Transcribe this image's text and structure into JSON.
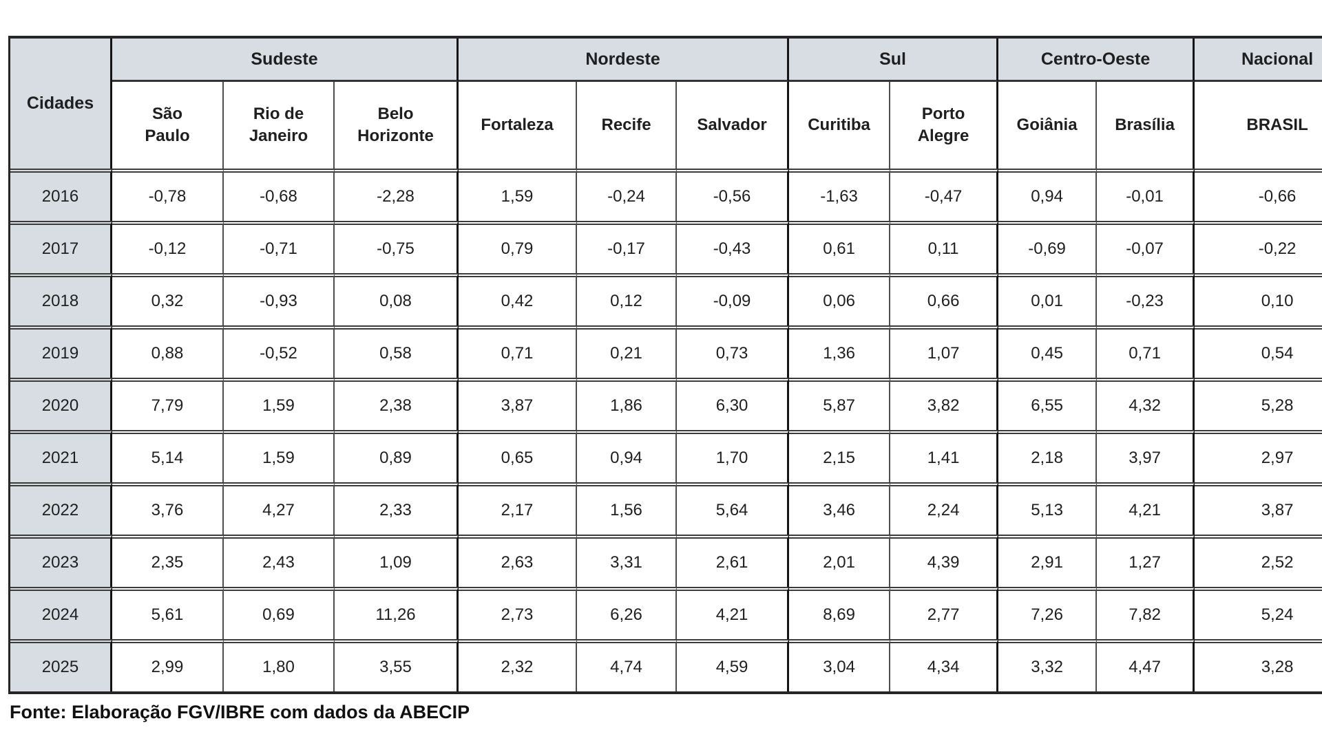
{
  "table": {
    "corner_label": "Cidades",
    "regions": [
      {
        "label": "Sudeste",
        "span": 3
      },
      {
        "label": "Nordeste",
        "span": 3
      },
      {
        "label": "Sul",
        "span": 2
      },
      {
        "label": "Centro-Oeste",
        "span": 2
      },
      {
        "label": "Nacional",
        "span": 1
      }
    ],
    "cities": [
      "São\nPaulo",
      "Rio de\nJaneiro",
      "Belo\nHorizonte",
      "Fortaleza",
      "Recife",
      "Salvador",
      "Curitiba",
      "Porto\nAlegre",
      "Goiânia",
      "Brasília",
      "BRASIL"
    ],
    "rows": [
      {
        "year": "2016",
        "values": [
          "-0,78",
          "-0,68",
          "-2,28",
          "1,59",
          "-0,24",
          "-0,56",
          "-1,63",
          "-0,47",
          "0,94",
          "-0,01",
          "-0,66"
        ]
      },
      {
        "year": "2017",
        "values": [
          "-0,12",
          "-0,71",
          "-0,75",
          "0,79",
          "-0,17",
          "-0,43",
          "0,61",
          "0,11",
          "-0,69",
          "-0,07",
          "-0,22"
        ]
      },
      {
        "year": "2018",
        "values": [
          "0,32",
          "-0,93",
          "0,08",
          "0,42",
          "0,12",
          "-0,09",
          "0,06",
          "0,66",
          "0,01",
          "-0,23",
          "0,10"
        ]
      },
      {
        "year": "2019",
        "values": [
          "0,88",
          "-0,52",
          "0,58",
          "0,71",
          "0,21",
          "0,73",
          "1,36",
          "1,07",
          "0,45",
          "0,71",
          "0,54"
        ]
      },
      {
        "year": "2020",
        "values": [
          "7,79",
          "1,59",
          "2,38",
          "3,87",
          "1,86",
          "6,30",
          "5,87",
          "3,82",
          "6,55",
          "4,32",
          "5,28"
        ]
      },
      {
        "year": "2021",
        "values": [
          "5,14",
          "1,59",
          "0,89",
          "0,65",
          "0,94",
          "1,70",
          "2,15",
          "1,41",
          "2,18",
          "3,97",
          "2,97"
        ]
      },
      {
        "year": "2022",
        "values": [
          "3,76",
          "4,27",
          "2,33",
          "2,17",
          "1,56",
          "5,64",
          "3,46",
          "2,24",
          "5,13",
          "4,21",
          "3,87"
        ]
      },
      {
        "year": "2023",
        "values": [
          "2,35",
          "2,43",
          "1,09",
          "2,63",
          "3,31",
          "2,61",
          "2,01",
          "4,39",
          "2,91",
          "1,27",
          "2,52"
        ]
      },
      {
        "year": "2024",
        "values": [
          "5,61",
          "0,69",
          "11,26",
          "2,73",
          "6,26",
          "4,21",
          "8,69",
          "2,77",
          "7,26",
          "7,82",
          "5,24"
        ]
      },
      {
        "year": "2025",
        "values": [
          "2,99",
          "1,80",
          "3,55",
          "2,32",
          "4,74",
          "4,59",
          "3,04",
          "4,34",
          "3,32",
          "4,47",
          "3,28"
        ]
      }
    ]
  },
  "footer": {
    "source": "Fonte: Elaboração FGV/IBRE com dados da ABECIP"
  },
  "colors": {
    "header_bg": "#d8dde4",
    "border_dark": "#141414",
    "border_thin": "#4d4d4d",
    "text": "#1f1f1f",
    "background": "#ffffff"
  },
  "chart_data": {
    "type": "table",
    "title": "",
    "row_header": "Cidades",
    "categories": [
      2016,
      2017,
      2018,
      2019,
      2020,
      2021,
      2022,
      2023,
      2024,
      2025
    ],
    "column_groups": [
      {
        "label": "Sudeste",
        "columns": [
          "São Paulo",
          "Rio de Janeiro",
          "Belo Horizonte"
        ]
      },
      {
        "label": "Nordeste",
        "columns": [
          "Fortaleza",
          "Recife",
          "Salvador"
        ]
      },
      {
        "label": "Sul",
        "columns": [
          "Curitiba",
          "Porto Alegre"
        ]
      },
      {
        "label": "Centro-Oeste",
        "columns": [
          "Goiânia",
          "Brasília"
        ]
      },
      {
        "label": "Nacional",
        "columns": [
          "BRASIL"
        ]
      }
    ],
    "series": [
      {
        "name": "São Paulo",
        "region": "Sudeste",
        "values": [
          -0.78,
          -0.12,
          0.32,
          0.88,
          7.79,
          5.14,
          3.76,
          2.35,
          5.61,
          2.99
        ]
      },
      {
        "name": "Rio de Janeiro",
        "region": "Sudeste",
        "values": [
          -0.68,
          -0.71,
          -0.93,
          -0.52,
          1.59,
          1.59,
          4.27,
          2.43,
          0.69,
          1.8
        ]
      },
      {
        "name": "Belo Horizonte",
        "region": "Sudeste",
        "values": [
          -2.28,
          -0.75,
          0.08,
          0.58,
          2.38,
          0.89,
          2.33,
          1.09,
          11.26,
          3.55
        ]
      },
      {
        "name": "Fortaleza",
        "region": "Nordeste",
        "values": [
          1.59,
          0.79,
          0.42,
          0.71,
          3.87,
          0.65,
          2.17,
          2.63,
          2.73,
          2.32
        ]
      },
      {
        "name": "Recife",
        "region": "Nordeste",
        "values": [
          -0.24,
          -0.17,
          0.12,
          0.21,
          1.86,
          0.94,
          1.56,
          3.31,
          6.26,
          4.74
        ]
      },
      {
        "name": "Salvador",
        "region": "Nordeste",
        "values": [
          -0.56,
          -0.43,
          -0.09,
          0.73,
          6.3,
          1.7,
          5.64,
          2.61,
          4.21,
          4.59
        ]
      },
      {
        "name": "Curitiba",
        "region": "Sul",
        "values": [
          -1.63,
          0.61,
          0.06,
          1.36,
          5.87,
          2.15,
          3.46,
          2.01,
          8.69,
          3.04
        ]
      },
      {
        "name": "Porto Alegre",
        "region": "Sul",
        "values": [
          -0.47,
          0.11,
          0.66,
          1.07,
          3.82,
          1.41,
          2.24,
          4.39,
          2.77,
          4.34
        ]
      },
      {
        "name": "Goiânia",
        "region": "Centro-Oeste",
        "values": [
          0.94,
          -0.69,
          0.01,
          0.45,
          6.55,
          2.18,
          5.13,
          2.91,
          7.26,
          3.32
        ]
      },
      {
        "name": "Brasília",
        "region": "Centro-Oeste",
        "values": [
          -0.01,
          -0.07,
          -0.23,
          0.71,
          4.32,
          3.97,
          4.21,
          1.27,
          7.82,
          4.47
        ]
      },
      {
        "name": "BRASIL",
        "region": "Nacional",
        "values": [
          -0.66,
          -0.22,
          0.1,
          0.54,
          5.28,
          2.97,
          3.87,
          2.52,
          5.24,
          3.28
        ]
      }
    ],
    "decimal_separator": ",",
    "source_note": "Fonte: Elaboração FGV/IBRE com dados da ABECIP"
  }
}
